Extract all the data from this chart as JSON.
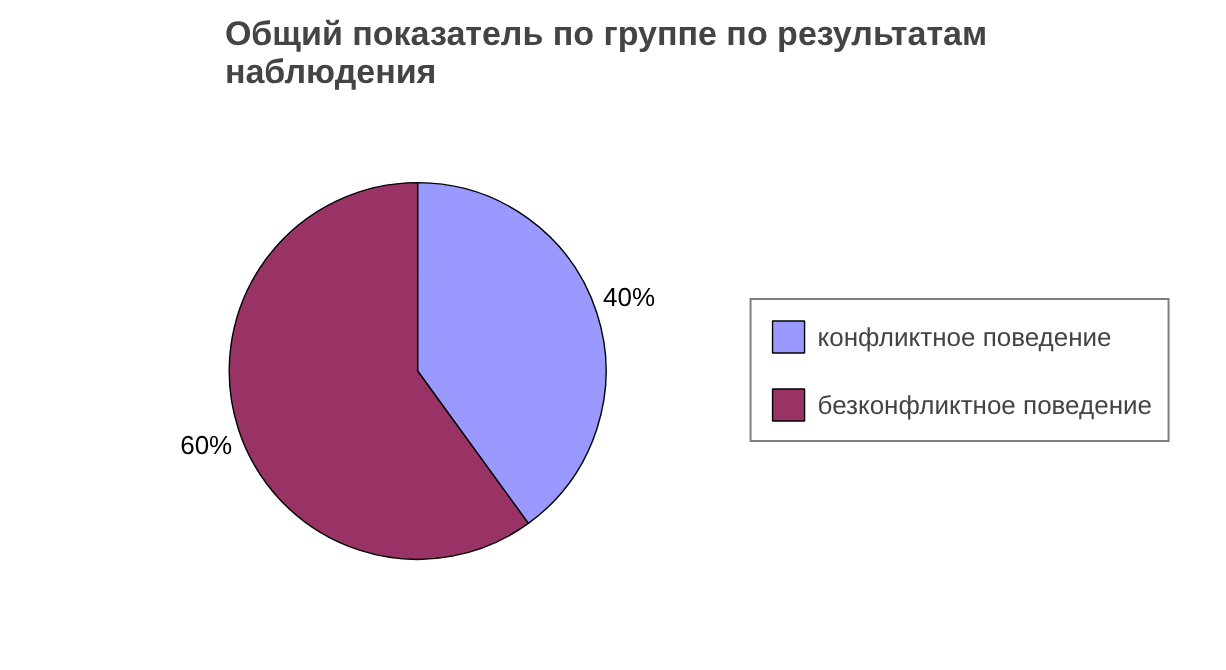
{
  "chart_data": {
    "type": "pie",
    "title": "Общий показатель по группе по результатам наблюдения",
    "categories": [
      "конфликтное поведение",
      "безконфликтное поведение"
    ],
    "values": [
      40,
      60
    ],
    "colors": [
      "#9999ff",
      "#993366"
    ],
    "value_labels": [
      "40%",
      "60%"
    ],
    "legend": "right"
  }
}
